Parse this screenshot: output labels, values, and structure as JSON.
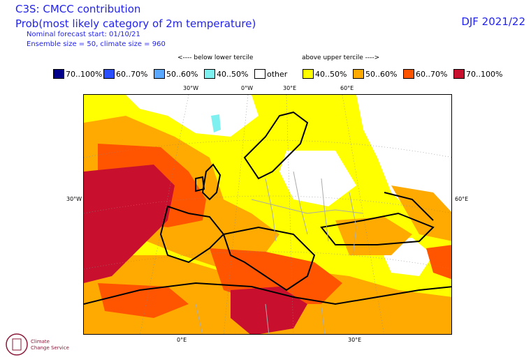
{
  "header": {
    "title_line1": "C3S: CMCC contribution",
    "title_line2": "Prob(most likely category of 2m temperature)",
    "forecast_start": "Nominal forecast start: 01/10/21",
    "ensemble": "Ensemble size = 50, climate size = 960",
    "season": "DJF 2021/22"
  },
  "tercile": {
    "below": "<---- below lower tercile",
    "above": "above upper tercile ---->"
  },
  "legend": [
    {
      "label": "70..100%",
      "color": "#00008b"
    },
    {
      "label": "60..70%",
      "color": "#2a4fff"
    },
    {
      "label": "50..60%",
      "color": "#5aa8ff"
    },
    {
      "label": "40..50%",
      "color": "#7ef0f0"
    },
    {
      "label": "other",
      "color": "#ffffff"
    },
    {
      "label": "40..50%",
      "color": "#ffff00"
    },
    {
      "label": "50..60%",
      "color": "#ffaa00"
    },
    {
      "label": "60..70%",
      "color": "#ff5500"
    },
    {
      "label": "70..100%",
      "color": "#c8102e"
    }
  ],
  "axes": {
    "top": [
      "30°W",
      "0°W",
      "30°E",
      "60°E"
    ],
    "left": "30°W",
    "right": "60°E",
    "bottom": [
      "0°E",
      "30°E"
    ]
  },
  "logo": {
    "line1": "Climate",
    "line2": "Change Service"
  }
}
